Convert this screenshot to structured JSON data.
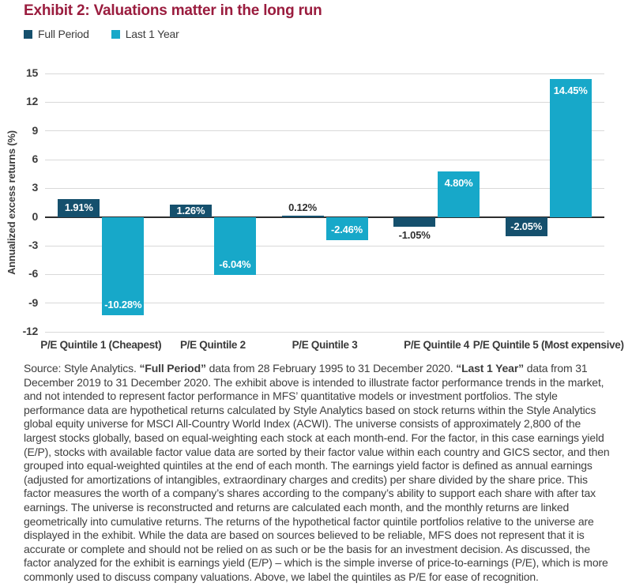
{
  "title": "Exhibit 2: Valuations matter in the long run",
  "legend": {
    "items": [
      {
        "label": "Full Period",
        "color": "#15506d"
      },
      {
        "label": "Last 1 Year",
        "color": "#17a8c9"
      }
    ]
  },
  "chart_data": {
    "type": "bar",
    "categories": [
      "P/E Quintile 1 (Cheapest)",
      "P/E Quintile 2",
      "P/E Quintile 3",
      "P/E Quintile 4",
      "P/E Quintile 5 (Most expensive)"
    ],
    "series": [
      {
        "name": "Full Period",
        "color": "#15506d",
        "values": [
          1.91,
          1.26,
          0.12,
          -1.05,
          -2.05
        ]
      },
      {
        "name": "Last 1 Year",
        "color": "#17a8c9",
        "values": [
          -10.28,
          -6.04,
          -2.46,
          4.8,
          14.45
        ]
      }
    ],
    "value_label_format": "0.00%",
    "title": "Exhibit 2: Valuations matter in the long run",
    "xlabel": "",
    "ylabel": "Annualized excess returns (%)",
    "ylim": [
      -12,
      15
    ],
    "yticks": [
      15,
      12,
      9,
      6,
      3,
      0,
      -3,
      -6,
      -9,
      -12
    ],
    "grid": true,
    "legend_position": "top-left"
  },
  "footer": {
    "segments": [
      {
        "text": "Source: Style Analytics. ",
        "bold": false
      },
      {
        "text": "“Full Period”",
        "bold": true
      },
      {
        "text": " data from 28 February 1995 to 31 December 2020. ",
        "bold": false
      },
      {
        "text": "“Last 1 Year”",
        "bold": true
      },
      {
        "text": " data from 31 December 2019 to 31 December 2020. The exhibit above is intended to illustrate factor performance trends in the market, and not intended to represent factor performance in MFS’ quantitative models or investment portfolios. The style performance data are hypothetical returns calculated by Style Analytics based on stock returns within the Style Analytics global equity universe for MSCI All-Country World Index (ACWI). The universe consists of approximately 2,800 of the largest stocks globally, based on equal-weighting each stock at each month-end. For the factor, in this case earnings yield (E/P), stocks with available factor value data are sorted by their factor value within each country and GICS sector, and then grouped into equal-weighted quintiles at the end of each month. The earnings yield factor is defined as annual earnings (adjusted for amortizations of intangibles, extraordinary charges and credits) per share divided by the share price. This factor measures the worth of a company’s shares according to the company’s ability to support each share with after tax earnings. The universe is reconstructed and returns are calculated each month, and the monthly returns are linked geometrically into cumulative returns. The returns of the hypothetical factor quintile portfolios relative to the universe are displayed in the exhibit. While the data are based on sources believed to be reliable, MFS does not represent that it is accurate or complete and should not be relied on as such or be the basis for an investment decision. As discussed, the factor analyzed for the exhibit is earnings yield (E/P) – which is the simple inverse of price-to-earnings (P/E), which is more commonly used to discuss company valuations. Above, we label the quintiles as P/E for ease of recognition.",
        "bold": false
      }
    ]
  }
}
